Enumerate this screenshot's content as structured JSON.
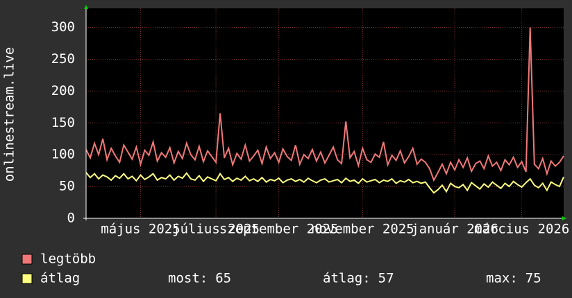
{
  "chart_data": {
    "type": "line",
    "y_label": "onlinestream.live",
    "xlim": [
      0,
      114
    ],
    "xticks": [
      {
        "value": 13,
        "label": "május 2025"
      },
      {
        "value": 31,
        "label": "július 2025"
      },
      {
        "value": 46,
        "label": "szeptember 2025"
      },
      {
        "value": 66,
        "label": "november 2025"
      },
      {
        "value": 88,
        "label": "január 2026"
      },
      {
        "value": 104,
        "label": "március 2026"
      }
    ],
    "ylim": [
      0,
      330
    ],
    "yticks": [
      0,
      50,
      100,
      150,
      200,
      250,
      300
    ],
    "grid": true,
    "series": [
      {
        "name": "legtöbb",
        "color": "#f07878",
        "values": [
          108,
          95,
          118,
          100,
          125,
          92,
          110,
          98,
          88,
          115,
          104,
          93,
          112,
          85,
          107,
          99,
          120,
          90,
          103,
          96,
          111,
          87,
          105,
          94,
          118,
          100,
          92,
          113,
          89,
          106,
          97,
          88,
          165,
          95,
          110,
          84,
          102,
          93,
          115,
          90,
          98,
          107,
          86,
          112,
          94,
          103,
          88,
          109,
          97,
          91,
          115,
          85,
          100,
          94,
          108,
          90,
          104,
          87,
          99,
          112,
          92,
          86,
          152,
          95,
          105,
          83,
          110,
          92,
          88,
          101,
          96,
          120,
          84,
          99,
          91,
          106,
          87,
          97,
          110,
          85,
          93,
          88,
          78,
          60,
          72,
          85,
          70,
          88,
          76,
          92,
          80,
          95,
          74,
          86,
          90,
          78,
          98,
          82,
          88,
          75,
          92,
          84,
          96,
          80,
          89,
          73,
          300,
          85,
          78,
          94,
          70,
          90,
          82,
          88,
          98
        ]
      },
      {
        "name": "átlag",
        "color": "#ffff80",
        "values": [
          72,
          64,
          70,
          62,
          68,
          65,
          60,
          67,
          63,
          70,
          62,
          66,
          59,
          68,
          61,
          65,
          70,
          60,
          64,
          62,
          68,
          60,
          66,
          63,
          71,
          62,
          60,
          67,
          58,
          65,
          62,
          59,
          70,
          61,
          64,
          58,
          63,
          60,
          66,
          59,
          62,
          58,
          64,
          57,
          61,
          59,
          63,
          56,
          60,
          62,
          58,
          61,
          57,
          63,
          59,
          56,
          60,
          62,
          57,
          59,
          61,
          56,
          63,
          58,
          60,
          55,
          62,
          57,
          59,
          61,
          56,
          60,
          58,
          62,
          55,
          59,
          57,
          61,
          56,
          58,
          55,
          57,
          48,
          40,
          45,
          52,
          42,
          55,
          50,
          48,
          53,
          44,
          56,
          51,
          46,
          54,
          49,
          57,
          52,
          47,
          55,
          50,
          58,
          53,
          49,
          56,
          62,
          52,
          48,
          55,
          44,
          57,
          53,
          50,
          65
        ],
        "stats": [
          {
            "label": "most:",
            "value": 65
          },
          {
            "label": "átlag:",
            "value": 57
          },
          {
            "label": "max:",
            "value": 75
          }
        ]
      }
    ]
  }
}
